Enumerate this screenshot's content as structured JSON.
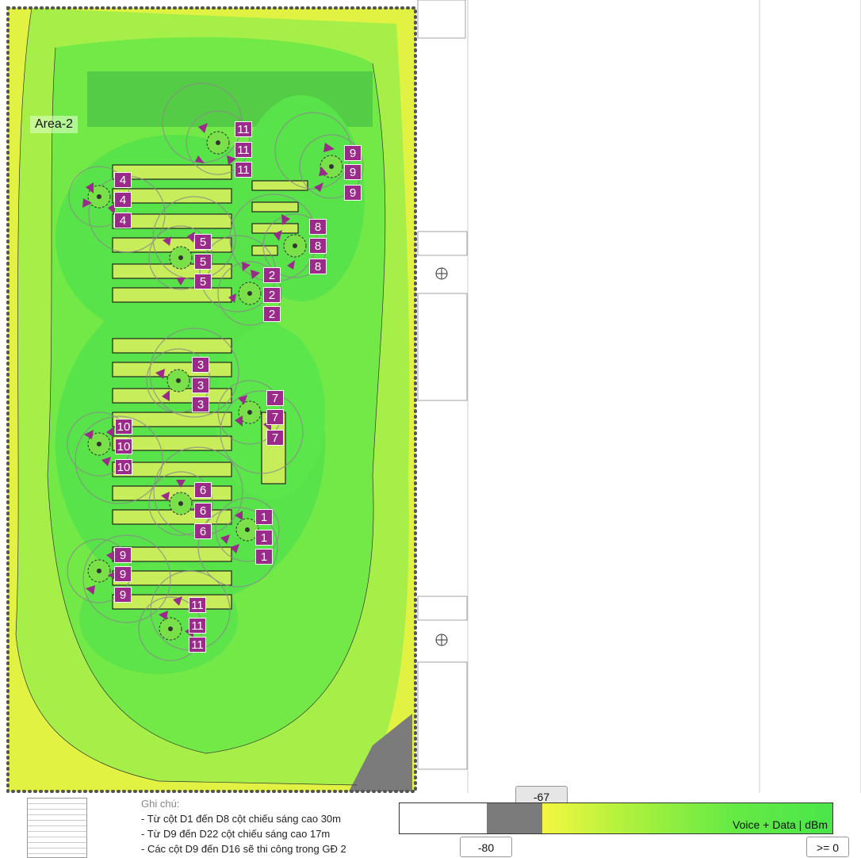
{
  "area_label": "Area-2",
  "ap_labels": [
    {
      "text": "11"
    },
    {
      "text": "11"
    },
    {
      "text": "11"
    },
    {
      "text": "9"
    },
    {
      "text": "9"
    },
    {
      "text": "9"
    },
    {
      "text": "4"
    },
    {
      "text": "4"
    },
    {
      "text": "4"
    },
    {
      "text": "8"
    },
    {
      "text": "8"
    },
    {
      "text": "8"
    },
    {
      "text": "5"
    },
    {
      "text": "5"
    },
    {
      "text": "5"
    },
    {
      "text": "2"
    },
    {
      "text": "2"
    },
    {
      "text": "2"
    },
    {
      "text": "3"
    },
    {
      "text": "3"
    },
    {
      "text": "3"
    },
    {
      "text": "7"
    },
    {
      "text": "7"
    },
    {
      "text": "7"
    },
    {
      "text": "10"
    },
    {
      "text": "10"
    },
    {
      "text": "10"
    },
    {
      "text": "6"
    },
    {
      "text": "6"
    },
    {
      "text": "6"
    },
    {
      "text": "1"
    },
    {
      "text": "1"
    },
    {
      "text": "1"
    },
    {
      "text": "9"
    },
    {
      "text": "9"
    },
    {
      "text": "9"
    },
    {
      "text": "11"
    },
    {
      "text": "11"
    },
    {
      "text": "11"
    }
  ],
  "notes": {
    "title": "Ghi chú:",
    "lines": [
      "- Từ cột D1 đến D8 cột chiếu sáng cao 30m",
      "- Từ D9 đến D22 cột chiếu sáng cao 17m",
      "- Các cột D9 đến D16 sẽ thi công trong GĐ 2"
    ]
  },
  "signal_scale": {
    "caption": "Voice + Data | dBm",
    "marker_value": "-67",
    "min_label": "-80",
    "max_label": ">= 0"
  },
  "colors": {
    "ap_marker": "#9c2a8a",
    "heat_strong": "#4ee64c",
    "heat_medium": "#8ef04a",
    "heat_weak": "#e6f542",
    "below_threshold": "#7b7b7b"
  }
}
